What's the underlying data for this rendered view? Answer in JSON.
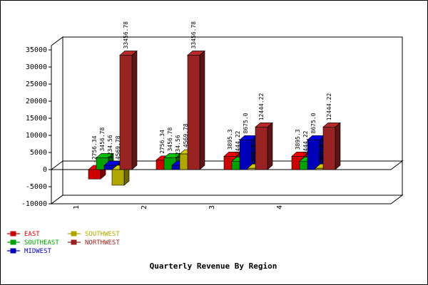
{
  "chart_data": {
    "type": "bar",
    "title": "Quarterly Revenue By Region",
    "xlabel": "",
    "ylabel": "",
    "categories": [
      "1",
      "2",
      "3",
      "4"
    ],
    "ylim": [
      -10000,
      35000
    ],
    "yticks": [
      -10000,
      -5000,
      0,
      5000,
      10000,
      15000,
      20000,
      25000,
      30000,
      35000
    ],
    "grid": false,
    "legend": "bottom-left",
    "series": [
      {
        "name": "EAST",
        "color": "#cc0000",
        "values": [
          -2756.34,
          2756.34,
          3895.3,
          3895.3
        ],
        "labels": [
          "-2756.34",
          "2756.34",
          "3895.3",
          "3895.3"
        ]
      },
      {
        "name": "SOUTHEAST",
        "color": "#00a000",
        "values": [
          3456.78,
          3456.78,
          2444.22,
          2444.22
        ],
        "labels": [
          "3456.78",
          "3456.78",
          "2444.22",
          "2444.22"
        ]
      },
      {
        "name": "MIDWEST",
        "color": "#0000bb",
        "values": [
          1234.56,
          1234.56,
          8675.0,
          8675.0
        ],
        "labels": [
          "1234.56",
          "1234.56",
          "8675.0",
          "8675.0"
        ]
      },
      {
        "name": "SOUTHWEST",
        "color": "#b0a800",
        "values": [
          -4569.78,
          4569.78,
          385.2,
          385.2
        ],
        "labels": [
          "-4569.78",
          "4569.78",
          "385.2",
          "385.2"
        ]
      },
      {
        "name": "NORTHWEST",
        "color": "#992222",
        "values": [
          33456.78,
          33456.78,
          12444.22,
          12444.22
        ],
        "labels": [
          "33456.78",
          "33456.78",
          "12444.22",
          "12444.22"
        ]
      }
    ]
  }
}
